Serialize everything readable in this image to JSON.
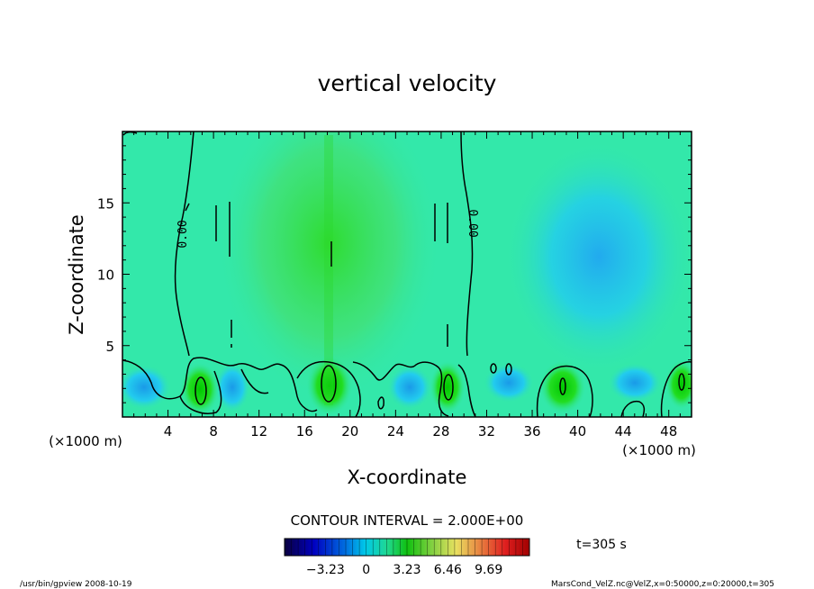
{
  "chart_data": {
    "type": "heatmap",
    "title": "vertical velocity",
    "xlabel": "X-coordinate",
    "ylabel": "Z-coordinate",
    "x_unit_left": "(×1000 m)",
    "x_unit_right": "(×1000 m)",
    "xlim": [
      0,
      50
    ],
    "ylim": [
      0,
      20
    ],
    "x_ticks": [
      4,
      8,
      12,
      16,
      20,
      24,
      28,
      32,
      36,
      40,
      44,
      48
    ],
    "y_ticks": [
      5,
      10,
      15
    ],
    "contour_interval_text": "CONTOUR INTERVAL = 2.000E+00",
    "contour_labels": [
      "0.00",
      "0.00"
    ],
    "colorbar": {
      "tick_labels": [
        "−3.23",
        "0",
        "3.23",
        "6.46",
        "9.69"
      ],
      "tick_values": [
        -3.23,
        0,
        3.23,
        6.46,
        9.69
      ],
      "range": [
        -6.46,
        12.92
      ]
    },
    "time_label": "t=305 s",
    "updraft_cores_x_km": [
      6.8,
      18.2,
      28.5,
      38.5,
      48.8
    ],
    "downdraft_region_x_km": [
      36,
      48
    ],
    "grid": false
  },
  "footer": {
    "left": "/usr/bin/gpview   2008-10-19",
    "right": "MarsCond_VelZ.nc@VelZ,x=0:50000,z=0:20000,t=305"
  },
  "colors": {
    "background_field": "#33e8aa",
    "positive": "#22dd22",
    "negative": "#22ccee",
    "contour": "#000000"
  }
}
